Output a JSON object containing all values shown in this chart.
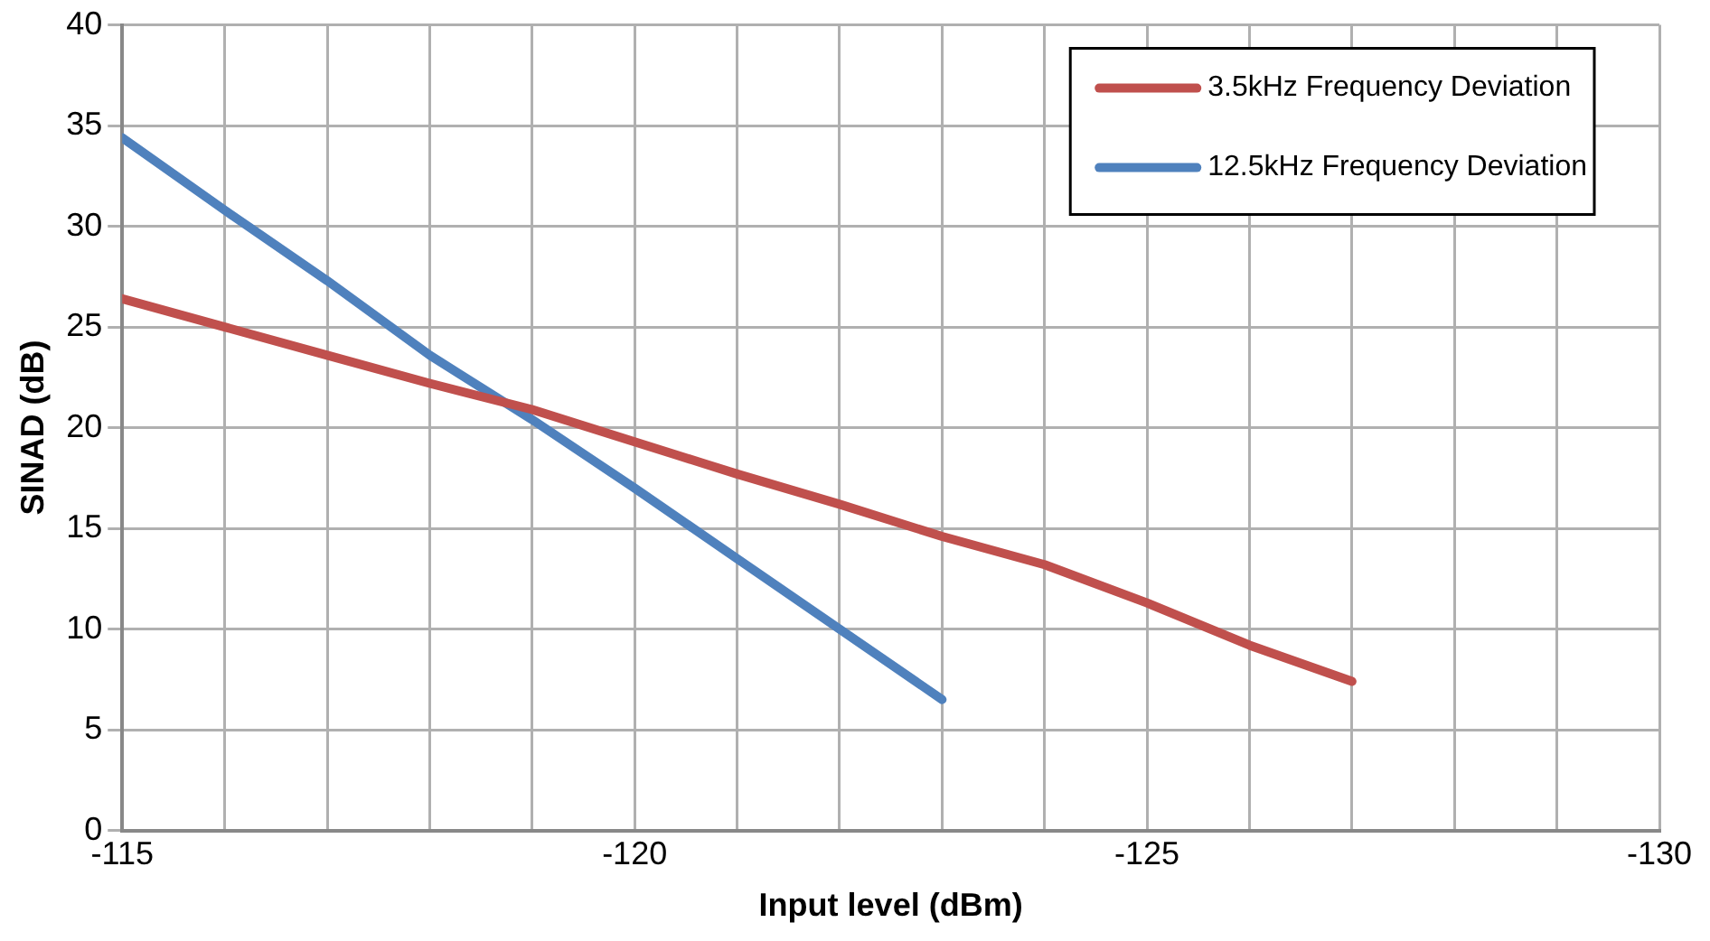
{
  "chart_data": {
    "type": "line",
    "xlabel": "Input level (dBm)",
    "ylabel": "SINAD (dB)",
    "xlim": [
      -115,
      -130
    ],
    "ylim": [
      0,
      40
    ],
    "xticks": [
      -115,
      {
        "value": -116,
        "label": null
      },
      {
        "value": -117,
        "label": null
      },
      {
        "value": -118,
        "label": null
      },
      {
        "value": -119,
        "label": null
      },
      -120,
      {
        "value": -121,
        "label": null
      },
      {
        "value": -122,
        "label": null
      },
      {
        "value": -123,
        "label": null
      },
      {
        "value": -124,
        "label": null
      },
      -125,
      {
        "value": -126,
        "label": null
      },
      {
        "value": -127,
        "label": null
      },
      {
        "value": -128,
        "label": null
      },
      {
        "value": -129,
        "label": null
      },
      -130
    ],
    "yticks": [
      0,
      5,
      10,
      15,
      20,
      25,
      30,
      35,
      40
    ],
    "grid": true,
    "legend": "top right",
    "marker": "none",
    "line_style": "solid",
    "series": [
      {
        "name": "3.5kHz Frequency Deviation",
        "color": "#c0504d",
        "x": [
          -115,
          -116,
          -117,
          -118,
          -119,
          -120,
          -121,
          -122,
          -123,
          -124,
          -125,
          -126,
          -127
        ],
        "values": [
          26.4,
          25.0,
          23.6,
          22.2,
          20.9,
          19.3,
          17.7,
          16.2,
          14.6,
          13.2,
          11.3,
          9.2,
          7.4
        ]
      },
      {
        "name": "12.5kHz Frequency Deviation",
        "color": "#4f81bd",
        "x": [
          -115,
          -116,
          -117,
          -118,
          -119,
          -120,
          -121,
          -122,
          -123
        ],
        "values": [
          34.4,
          30.8,
          27.3,
          23.6,
          20.4,
          17.0,
          13.5,
          10.0,
          6.5
        ]
      }
    ]
  }
}
